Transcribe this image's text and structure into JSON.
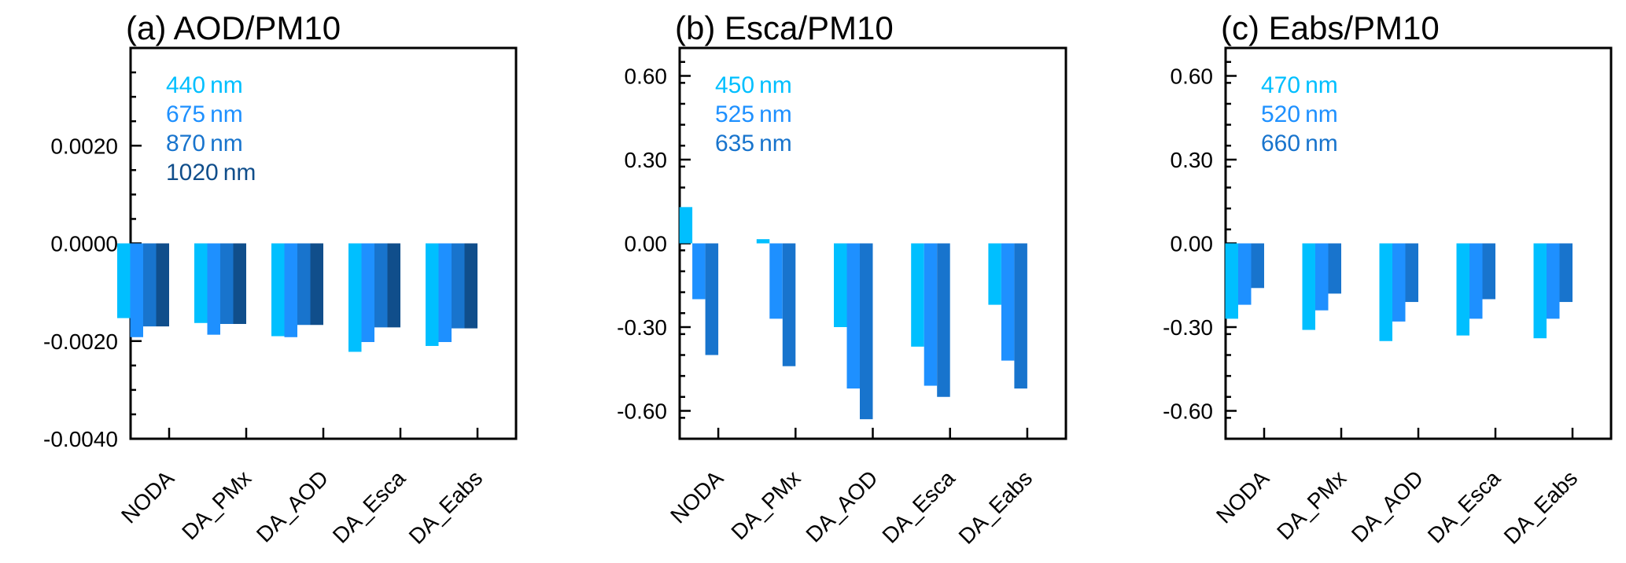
{
  "colors": [
    "#00BFFF",
    "#1E90FF",
    "#1874CD",
    "#104E8B"
  ],
  "chart_data": [
    {
      "type": "bar",
      "title": "(a) AOD/PM10",
      "categories": [
        "NODA",
        "DA_PMx",
        "DA_AOD",
        "DA_Esca",
        "DA_Eabs"
      ],
      "series": [
        {
          "name": "440",
          "values": [
            -0.00153,
            -0.00163,
            -0.0019,
            -0.00222,
            -0.0021
          ]
        },
        {
          "name": "675",
          "values": [
            -0.00192,
            -0.00187,
            -0.00192,
            -0.00202,
            -0.00202
          ]
        },
        {
          "name": "870",
          "values": [
            -0.0017,
            -0.00165,
            -0.00167,
            -0.00172,
            -0.00174
          ]
        },
        {
          "name": "1020",
          "values": [
            -0.0017,
            -0.00165,
            -0.00167,
            -0.00172,
            -0.00174
          ]
        }
      ],
      "legend_unit": "nm",
      "ylim": [
        -0.004,
        0.004
      ],
      "yticks": [
        -0.004,
        -0.002,
        0.0,
        0.002
      ],
      "ytick_labels": [
        "-0.0040",
        "-0.0020",
        "0.0000",
        "0.0020"
      ],
      "legend_position": "top-left"
    },
    {
      "type": "bar",
      "title": "(b) Esca/PM10",
      "categories": [
        "NODA",
        "DA_PMx",
        "DA_AOD",
        "DA_Esca",
        "DA_Eabs"
      ],
      "series": [
        {
          "name": "450",
          "values": [
            0.13,
            0.015,
            -0.3,
            -0.37,
            -0.22
          ]
        },
        {
          "name": "525",
          "values": [
            -0.2,
            -0.27,
            -0.52,
            -0.51,
            -0.42
          ]
        },
        {
          "name": "635",
          "values": [
            -0.4,
            -0.44,
            -0.63,
            -0.55,
            -0.52
          ]
        }
      ],
      "legend_unit": "nm",
      "ylim": [
        -0.7,
        0.7
      ],
      "yticks": [
        -0.6,
        -0.3,
        0.0,
        0.3,
        0.6
      ],
      "ytick_labels": [
        "-0.60",
        "-0.30",
        "0.00",
        "0.30",
        "0.60"
      ],
      "legend_position": "top-left"
    },
    {
      "type": "bar",
      "title": "(c) Eabs/PM10",
      "categories": [
        "NODA",
        "DA_PMx",
        "DA_AOD",
        "DA_Esca",
        "DA_Eabs"
      ],
      "series": [
        {
          "name": "470",
          "values": [
            -0.27,
            -0.31,
            -0.35,
            -0.33,
            -0.34
          ]
        },
        {
          "name": "520",
          "values": [
            -0.22,
            -0.24,
            -0.28,
            -0.27,
            -0.27
          ]
        },
        {
          "name": "660",
          "values": [
            -0.16,
            -0.18,
            -0.21,
            -0.2,
            -0.21
          ]
        }
      ],
      "legend_unit": "nm",
      "ylim": [
        -0.7,
        0.7
      ],
      "yticks": [
        -0.6,
        -0.3,
        0.0,
        0.3,
        0.6
      ],
      "ytick_labels": [
        "-0.60",
        "-0.30",
        "0.00",
        "0.30",
        "0.60"
      ],
      "legend_position": "top-left"
    }
  ]
}
